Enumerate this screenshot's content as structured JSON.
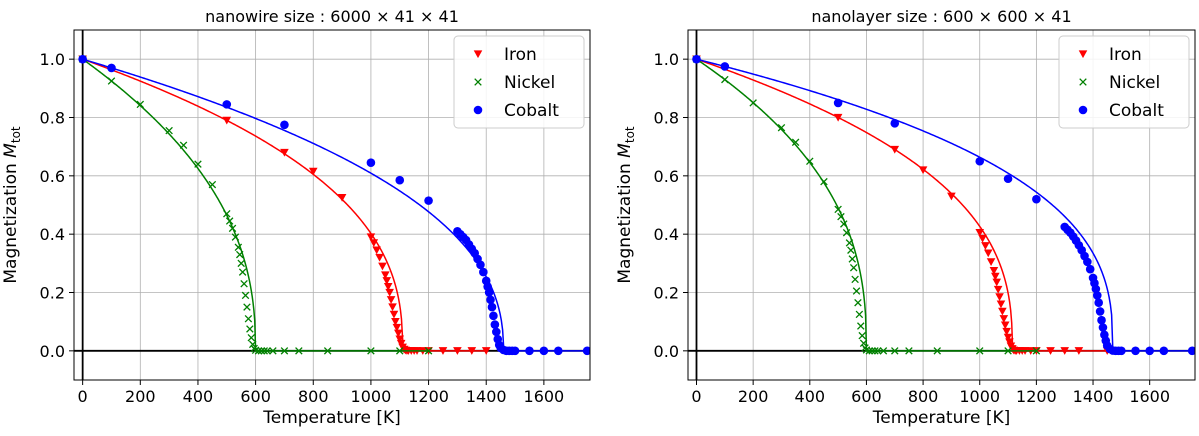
{
  "chart_data": [
    {
      "type": "scatter",
      "title": "nanowire size : 6000 × 41 × 41",
      "xlabel": "Temperature [K]",
      "ylabel": "Magnetization",
      "ylabel_symbol": "M",
      "ylabel_subscript": "tot",
      "xlim": [
        -30,
        1760
      ],
      "ylim": [
        -0.1,
        1.1
      ],
      "xticks": [
        "0",
        "200",
        "400",
        "600",
        "800",
        "1000",
        "1200",
        "1400",
        "1600"
      ],
      "yticks": [
        "0.0",
        "0.2",
        "0.4",
        "0.6",
        "0.8",
        "1.0"
      ],
      "grid": true,
      "legend_position": "top-right",
      "series": [
        {
          "name": "Iron",
          "color": "#ff0000",
          "marker": "triangle-down-icon",
          "Tc": 1110,
          "x": [
            0,
            500,
            700,
            800,
            900,
            1000,
            1010,
            1020,
            1030,
            1040,
            1050,
            1055,
            1060,
            1065,
            1070,
            1075,
            1080,
            1085,
            1090,
            1095,
            1100,
            1105,
            1110,
            1115,
            1120,
            1125,
            1130,
            1140,
            1150,
            1160,
            1180,
            1200,
            1250,
            1300,
            1350,
            1400
          ],
          "y": [
            1.0,
            0.79,
            0.68,
            0.615,
            0.525,
            0.39,
            0.37,
            0.345,
            0.32,
            0.29,
            0.26,
            0.24,
            0.22,
            0.2,
            0.175,
            0.15,
            0.125,
            0.1,
            0.08,
            0.06,
            0.04,
            0.025,
            0.012,
            0.005,
            0.002,
            0.0,
            0.0,
            0.0,
            0.0,
            0.0,
            0.0,
            0.0,
            0.0,
            0.0,
            0.0,
            0.0
          ]
        },
        {
          "name": "Nickel",
          "color": "#008000",
          "marker": "cross-icon",
          "Tc": 600,
          "x": [
            0,
            100,
            200,
            300,
            350,
            400,
            450,
            500,
            510,
            520,
            530,
            540,
            545,
            550,
            555,
            560,
            565,
            570,
            575,
            580,
            585,
            590,
            595,
            600,
            610,
            620,
            630,
            640,
            660,
            700,
            750,
            850,
            1000,
            1100,
            1200
          ],
          "y": [
            1.0,
            0.925,
            0.845,
            0.755,
            0.705,
            0.64,
            0.57,
            0.47,
            0.445,
            0.42,
            0.39,
            0.355,
            0.33,
            0.3,
            0.27,
            0.23,
            0.19,
            0.15,
            0.11,
            0.075,
            0.045,
            0.022,
            0.008,
            0.002,
            0.0,
            0.0,
            0.0,
            0.0,
            0.0,
            0.0,
            0.0,
            0.0,
            0.0,
            0.0,
            0.0
          ]
        },
        {
          "name": "Cobalt",
          "color": "#0000ff",
          "marker": "circle-icon",
          "Tc": 1460,
          "x": [
            0,
            100,
            500,
            700,
            1000,
            1100,
            1200,
            1300,
            1310,
            1320,
            1330,
            1340,
            1350,
            1360,
            1370,
            1380,
            1390,
            1400,
            1405,
            1410,
            1415,
            1420,
            1425,
            1430,
            1435,
            1440,
            1445,
            1450,
            1460,
            1470,
            1480,
            1490,
            1500,
            1550,
            1600,
            1650,
            1750
          ],
          "y": [
            1.0,
            0.97,
            0.845,
            0.775,
            0.645,
            0.585,
            0.515,
            0.41,
            0.4,
            0.39,
            0.38,
            0.365,
            0.35,
            0.335,
            0.315,
            0.295,
            0.27,
            0.24,
            0.22,
            0.2,
            0.175,
            0.15,
            0.12,
            0.09,
            0.065,
            0.04,
            0.02,
            0.01,
            0.003,
            0.0,
            0.0,
            0.0,
            0.0,
            0.0,
            0.0,
            0.0,
            0.0
          ]
        }
      ]
    },
    {
      "type": "scatter",
      "title": "nanolayer size : 600 × 600 × 41",
      "xlabel": "Temperature [K]",
      "ylabel": "Magnetization",
      "ylabel_symbol": "M",
      "ylabel_subscript": "tot",
      "xlim": [
        -30,
        1760
      ],
      "ylim": [
        -0.1,
        1.1
      ],
      "xticks": [
        "0",
        "200",
        "400",
        "600",
        "800",
        "1000",
        "1200",
        "1400",
        "1600"
      ],
      "yticks": [
        "0.0",
        "0.2",
        "0.4",
        "0.6",
        "0.8",
        "1.0"
      ],
      "grid": true,
      "legend_position": "top-right",
      "series": [
        {
          "name": "Iron",
          "color": "#ff0000",
          "marker": "triangle-down-icon",
          "Tc": 1115,
          "x": [
            0,
            500,
            700,
            800,
            900,
            1000,
            1010,
            1020,
            1030,
            1040,
            1050,
            1055,
            1060,
            1065,
            1070,
            1075,
            1080,
            1085,
            1090,
            1095,
            1100,
            1105,
            1110,
            1115,
            1120,
            1125,
            1130,
            1140,
            1150,
            1160,
            1180,
            1200,
            1250,
            1300,
            1350,
            1450
          ],
          "y": [
            1.0,
            0.8,
            0.69,
            0.62,
            0.53,
            0.405,
            0.385,
            0.36,
            0.335,
            0.305,
            0.275,
            0.255,
            0.235,
            0.21,
            0.185,
            0.16,
            0.135,
            0.11,
            0.088,
            0.066,
            0.046,
            0.03,
            0.016,
            0.007,
            0.002,
            0.0,
            0.0,
            0.0,
            0.0,
            0.0,
            0.0,
            0.0,
            0.0,
            0.0,
            0.0,
            0.0
          ]
        },
        {
          "name": "Nickel",
          "color": "#008000",
          "marker": "cross-icon",
          "Tc": 600,
          "x": [
            0,
            100,
            200,
            300,
            350,
            400,
            450,
            500,
            510,
            520,
            530,
            540,
            545,
            550,
            555,
            560,
            565,
            570,
            575,
            580,
            585,
            590,
            595,
            600,
            610,
            620,
            630,
            640,
            660,
            700,
            750,
            850,
            1000,
            1100,
            1200
          ],
          "y": [
            1.0,
            0.93,
            0.85,
            0.765,
            0.715,
            0.65,
            0.58,
            0.485,
            0.46,
            0.435,
            0.405,
            0.37,
            0.345,
            0.315,
            0.285,
            0.245,
            0.205,
            0.165,
            0.125,
            0.085,
            0.052,
            0.026,
            0.01,
            0.003,
            0.0,
            0.0,
            0.0,
            0.0,
            0.0,
            0.0,
            0.0,
            0.0,
            0.0,
            0.0,
            0.0
          ]
        },
        {
          "name": "Cobalt",
          "color": "#0000ff",
          "marker": "circle-icon",
          "Tc": 1470,
          "x": [
            0,
            100,
            500,
            700,
            1000,
            1100,
            1200,
            1300,
            1310,
            1320,
            1330,
            1340,
            1350,
            1360,
            1370,
            1380,
            1390,
            1400,
            1405,
            1410,
            1415,
            1420,
            1425,
            1430,
            1435,
            1440,
            1445,
            1450,
            1460,
            1470,
            1480,
            1490,
            1500,
            1550,
            1600,
            1650,
            1750
          ],
          "y": [
            1.0,
            0.975,
            0.85,
            0.78,
            0.65,
            0.59,
            0.52,
            0.425,
            0.415,
            0.405,
            0.392,
            0.378,
            0.362,
            0.345,
            0.325,
            0.305,
            0.28,
            0.25,
            0.232,
            0.212,
            0.19,
            0.165,
            0.135,
            0.105,
            0.08,
            0.055,
            0.035,
            0.018,
            0.006,
            0.001,
            0.0,
            0.0,
            0.0,
            0.0,
            0.0,
            0.0,
            0.0
          ]
        }
      ]
    }
  ]
}
